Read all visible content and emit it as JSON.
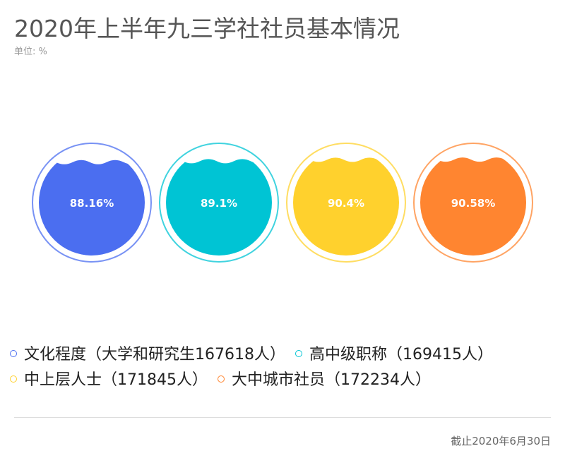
{
  "title": "2020年上半年九三学社社员基本情况",
  "unit": "单位: %",
  "footer": "截止2020年6月30日",
  "chart_data": {
    "type": "liquidfill",
    "series": [
      {
        "name": "文化程度（大学和研究生167618人）",
        "value": 88.16,
        "label": "88.16%",
        "color": "#4b6ef0"
      },
      {
        "name": "高中级职称（169415人）",
        "value": 89.1,
        "label": "89.1%",
        "color": "#00c4d4"
      },
      {
        "name": "中上层人士（171845人）",
        "value": 90.4,
        "label": "90.4%",
        "color": "#ffd12d"
      },
      {
        "name": "大中城市社员（172234人）",
        "value": 90.58,
        "label": "90.58%",
        "color": "#ff8530"
      }
    ],
    "legend_position": "bottom"
  }
}
